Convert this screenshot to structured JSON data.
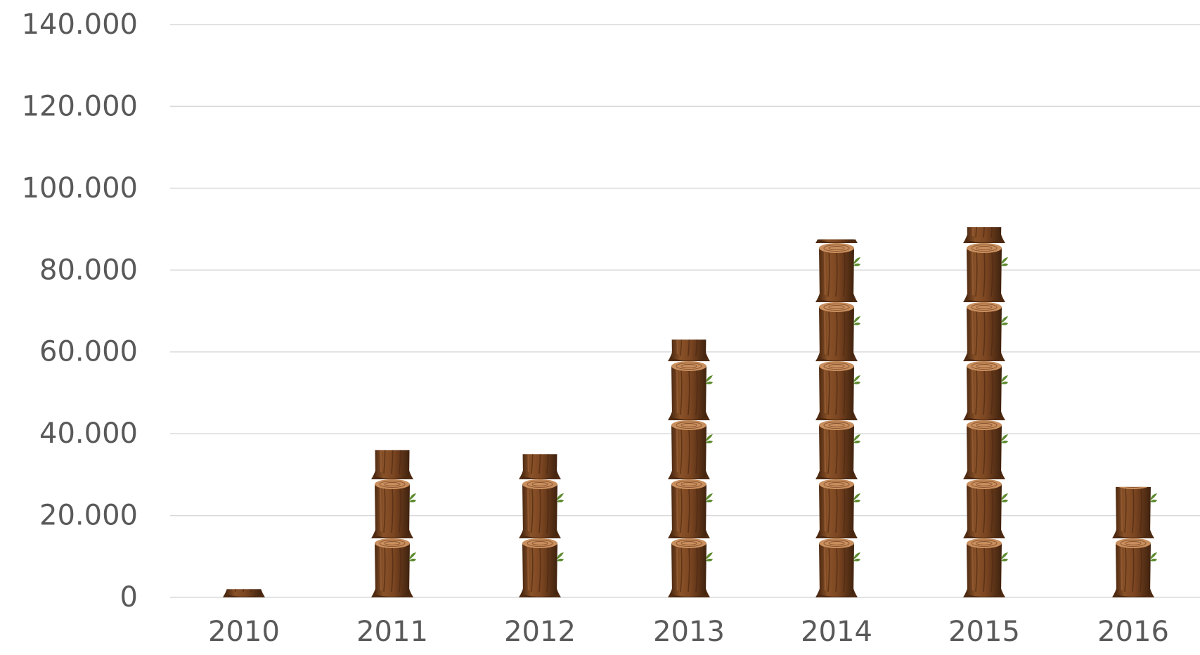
{
  "chart_data": {
    "type": "bar",
    "title": "",
    "xlabel": "",
    "ylabel": "",
    "categories": [
      "2010",
      "2011",
      "2012",
      "2013",
      "2014",
      "2015",
      "2016"
    ],
    "values": [
      2000,
      36000,
      35000,
      63000,
      87500,
      90500,
      27000
    ],
    "ylim": [
      0,
      140000
    ],
    "yticks": [
      0,
      20000,
      40000,
      60000,
      80000,
      100000,
      120000,
      140000
    ],
    "ytick_labels": [
      "0",
      "20.000",
      "40.000",
      "60.000",
      "80.000",
      "100.000",
      "120.000",
      "140.000"
    ],
    "grid": true,
    "legend": "none",
    "bar_style": "stacked tree-stump pictograph",
    "colors": {
      "bark": "#7a4521",
      "bark_dark": "#4e2a12",
      "bark_light": "#a0643a",
      "ring_top": "#c98f5e",
      "ring_line": "#8a5530",
      "leaf": "#5c8a2e",
      "grid": "#d9d9d9",
      "text": "#595959"
    }
  }
}
